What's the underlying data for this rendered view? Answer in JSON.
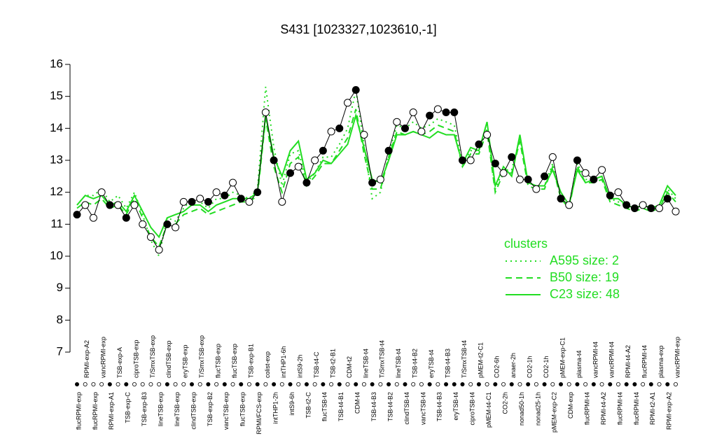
{
  "chart_data": {
    "type": "line",
    "title": "S431 [1023327,1023610,-1]",
    "categories": [
      "flucRPMI-exp",
      "RPMI-exp-A2",
      "flucRPMI-exp",
      "vancRPMI-exp",
      "RPMI-exp-A1",
      "TSB-exp-A",
      "TSB-exp-C",
      "ciproTSB-exp",
      "TSB-exp-B3",
      "T/SmxTSB-exp",
      "lineTSB-exp",
      "clindTSB-exp",
      "lineTSB-exp",
      "eryTSB-exp",
      "clindTSB-exp",
      "T/SmxTSB-exp",
      "TSB-exp-B2",
      "flucTSB-exp",
      "vancTSB-exp",
      "flucTSB-exp",
      "flucTSB-exp",
      "TSB-exp-B1",
      "RPMI/FCS-exp",
      "colist-exp",
      "intTHP1-2h",
      "intTHP1-6h",
      "intS9-6h",
      "intS9-2h",
      "TSB-t2-C",
      "TSB-t4-C",
      "flucTSB-t4",
      "TSB-t2-B1",
      "TSB-t4-B1",
      "CDM-t2",
      "CDM-t4",
      "lineTSB-t4",
      "TSB-t4-B3",
      "T/SmxTSB-t4",
      "TSB-t4-B2",
      "lineTSB-t4",
      "clindTSB-t4",
      "TSB-t4-B2",
      "vancTSB-t4",
      "eryTSB-t4",
      "TSB-t4-B3",
      "TSB-t4-B3",
      "eryTSB-t4",
      "T/SmxTSB-t4",
      "ciproTSB-t4",
      "pMEM-t2-C1",
      "pMEM-t4-C1",
      "CO2-6h",
      "CO2-2h",
      "anaer-2h",
      "nonad50-1h",
      "CO2-1h",
      "nonad25-1h",
      "CO2-1h",
      "pMEM-exp-C2",
      "pMEM-exp-C1",
      "CDM-exp",
      "plasma-t4",
      "flucRPMI-t4",
      "vancRPMI-t4",
      "RPMI-t4-A2",
      "vancRPMI-t4",
      "flucRPMI-t4",
      "RPMI-t4-A2",
      "flucRPMI-t4",
      "flucRPMI-t4",
      "RPMI-t2-A1",
      "plasma-exp",
      "RPMI-exp-A2",
      "vancRPMI-exp"
    ],
    "values": [
      11.3,
      11.6,
      11.2,
      12.0,
      11.6,
      11.6,
      11.2,
      11.6,
      11.0,
      10.6,
      10.2,
      11.0,
      10.9,
      11.7,
      11.7,
      11.8,
      11.7,
      12.0,
      11.9,
      12.3,
      11.8,
      11.7,
      12.0,
      14.5,
      13.0,
      11.7,
      12.6,
      12.8,
      12.3,
      13.0,
      13.3,
      13.9,
      14.0,
      14.8,
      15.2,
      13.8,
      12.3,
      12.4,
      13.3,
      14.2,
      14.0,
      14.5,
      13.9,
      14.4,
      14.6,
      14.5,
      14.5,
      13.0,
      13.0,
      13.5,
      13.8,
      12.9,
      12.6,
      13.1,
      12.4,
      12.4,
      12.1,
      12.5,
      13.1,
      11.8,
      11.6,
      13.0,
      12.6,
      12.4,
      12.7,
      11.9,
      12.0,
      11.6,
      11.5,
      11.6,
      11.5,
      11.5,
      11.8,
      11.4
    ],
    "filled": [
      true,
      false,
      false,
      false,
      true,
      false,
      true,
      false,
      false,
      false,
      false,
      true,
      false,
      false,
      true,
      false,
      true,
      false,
      true,
      false,
      true,
      false,
      true,
      false,
      true,
      false,
      true,
      false,
      true,
      false,
      true,
      false,
      true,
      false,
      true,
      false,
      true,
      false,
      true,
      false,
      true,
      false,
      false,
      true,
      false,
      true,
      true,
      true,
      false,
      true,
      false,
      true,
      false,
      true,
      false,
      true,
      false,
      true,
      false,
      true,
      false,
      true,
      false,
      true,
      false,
      true,
      false,
      true,
      true,
      false,
      true,
      false,
      true,
      false
    ],
    "point_color": "#000000",
    "legend_title": "clusters",
    "series": [
      {
        "name": "A595 size: 2",
        "color": "#22dd22",
        "style": "dotted",
        "values": [
          11.6,
          11.9,
          11.9,
          12.1,
          11.7,
          11.9,
          11.5,
          12.0,
          11.3,
          10.5,
          10.0,
          11.2,
          11.1,
          11.5,
          11.8,
          11.7,
          11.5,
          11.8,
          11.8,
          12.0,
          11.9,
          11.8,
          12.1,
          15.3,
          13.4,
          12.2,
          13.2,
          13.3,
          12.3,
          12.6,
          13.1,
          13.1,
          13.5,
          14.0,
          15.2,
          13.5,
          11.8,
          12.0,
          13.2,
          14.1,
          14.0,
          14.2,
          14.0,
          14.1,
          14.3,
          14.2,
          14.1,
          12.9,
          13.3,
          13.3,
          14.0,
          12.1,
          12.7,
          12.7,
          13.7,
          12.3,
          12.2,
          12.2,
          12.9,
          11.9,
          11.6,
          12.9,
          12.4,
          12.4,
          12.5,
          11.8,
          11.7,
          11.6,
          11.5,
          11.6,
          11.5,
          11.6,
          12.1,
          11.8
        ]
      },
      {
        "name": "B50 size: 19",
        "color": "#22dd22",
        "style": "dashed",
        "values": [
          11.5,
          11.7,
          11.6,
          11.8,
          11.5,
          11.6,
          11.3,
          11.8,
          11.2,
          10.6,
          10.3,
          11.0,
          11.0,
          11.3,
          11.4,
          11.5,
          11.3,
          11.4,
          11.5,
          11.6,
          11.7,
          11.7,
          11.9,
          14.3,
          12.8,
          12.0,
          12.9,
          13.1,
          12.2,
          12.5,
          12.9,
          12.9,
          13.3,
          13.7,
          14.6,
          13.2,
          12.1,
          12.1,
          13.1,
          13.9,
          13.8,
          13.9,
          13.8,
          13.9,
          14.1,
          14.0,
          13.9,
          12.8,
          13.2,
          13.2,
          13.9,
          12.0,
          12.6,
          12.6,
          13.6,
          12.2,
          12.1,
          12.1,
          12.8,
          11.8,
          11.5,
          12.8,
          12.3,
          12.3,
          12.4,
          11.7,
          11.6,
          11.5,
          11.4,
          11.5,
          11.4,
          11.5,
          12.0,
          11.7
        ]
      },
      {
        "name": "C23 size: 48",
        "color": "#22dd22",
        "style": "solid",
        "values": [
          11.6,
          11.9,
          11.8,
          11.9,
          11.6,
          11.7,
          11.4,
          11.9,
          11.4,
          10.9,
          10.6,
          11.2,
          11.3,
          11.4,
          11.6,
          11.6,
          11.4,
          11.6,
          11.7,
          11.8,
          11.8,
          11.8,
          12.0,
          14.4,
          13.1,
          12.5,
          13.3,
          13.6,
          12.4,
          12.6,
          13.0,
          12.9,
          13.2,
          13.5,
          14.4,
          13.4,
          12.4,
          12.3,
          13.0,
          13.8,
          13.8,
          13.9,
          13.8,
          13.7,
          13.9,
          13.8,
          13.8,
          12.9,
          13.4,
          13.3,
          14.2,
          12.2,
          12.8,
          12.5,
          13.8,
          12.3,
          12.2,
          12.2,
          12.7,
          12.0,
          11.6,
          12.7,
          12.3,
          12.4,
          12.5,
          11.8,
          11.8,
          11.6,
          11.5,
          11.6,
          11.5,
          11.6,
          12.2,
          11.9
        ]
      }
    ],
    "ylim": [
      7,
      16
    ],
    "yticks": [
      7,
      8,
      9,
      10,
      11,
      12,
      13,
      14,
      15,
      16
    ]
  }
}
